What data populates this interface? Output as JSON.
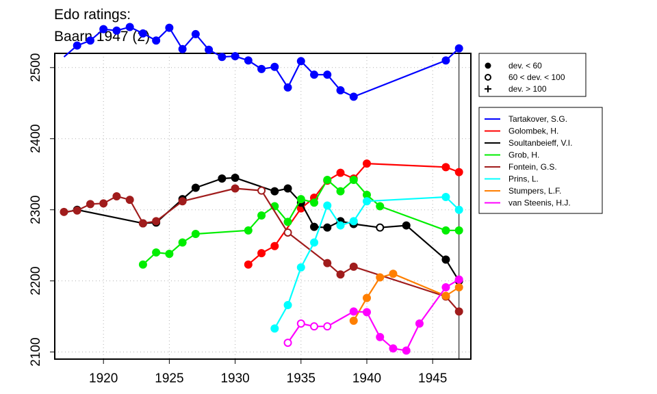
{
  "chart_data": {
    "type": "line",
    "title_lines": [
      "Edo ratings:",
      "Baarn 1947 (2)"
    ],
    "xlabel": "",
    "ylabel": "",
    "xlim": [
      1916.3,
      1947.9
    ],
    "ylim": [
      2090,
      2520
    ],
    "x_ticks": [
      1920,
      1925,
      1930,
      1935,
      1940,
      1945
    ],
    "y_ticks": [
      2100,
      2200,
      2300,
      2400,
      2500
    ],
    "grid": true,
    "reference_line_x": 1947,
    "legend_position": "right",
    "marker_legend": [
      {
        "symbol": "filled",
        "label": "dev. < 60"
      },
      {
        "symbol": "open",
        "label": "60 < dev. < 100"
      },
      {
        "symbol": "plus",
        "label": "dev. > 100"
      }
    ],
    "series": [
      {
        "name": "Tartakover, S.G.",
        "color": "#0000ff",
        "x": [
          1917,
          1918,
          1919,
          1920,
          1921,
          1922,
          1923,
          1924,
          1925,
          1926,
          1927,
          1928,
          1929,
          1930,
          1931,
          1932,
          1933,
          1934,
          1935,
          1936,
          1937,
          1938,
          1939,
          1946,
          1947
        ],
        "y": [
          2515,
          2531,
          2538,
          2554,
          2552,
          2557,
          2548,
          2538,
          2556,
          2526,
          2547,
          2525,
          2515,
          2516,
          2510,
          2498,
          2501,
          2472,
          2509,
          2490,
          2490,
          2468,
          2459,
          2510,
          2527
        ],
        "markers": [
          "none",
          "filled",
          "filled",
          "filled",
          "filled",
          "filled",
          "filled",
          "filled",
          "filled",
          "filled",
          "filled",
          "filled",
          "filled",
          "filled",
          "filled",
          "filled",
          "filled",
          "filled",
          "filled",
          "filled",
          "filled",
          "filled",
          "filled",
          "filled",
          "filled"
        ]
      },
      {
        "name": "Golombek, H.",
        "color": "#ff0000",
        "x": [
          1931,
          1932,
          1933,
          1935,
          1936,
          1937,
          1938,
          1939,
          1940,
          1946,
          1947
        ],
        "y": [
          2223,
          2239,
          2249,
          2302,
          2317,
          2341,
          2352,
          2344,
          2365,
          2360,
          2353
        ],
        "markers": [
          "filled",
          "filled",
          "filled",
          "filled",
          "filled",
          "filled",
          "filled",
          "filled",
          "filled",
          "filled",
          "filled"
        ]
      },
      {
        "name": "Soultanbeieff, V.I.",
        "color": "#000000",
        "x": [
          1917,
          1918,
          1923,
          1924,
          1926,
          1927,
          1929,
          1930,
          1933,
          1934,
          1935,
          1936,
          1937,
          1938,
          1939,
          1941,
          1943,
          1946,
          1947
        ],
        "y": [
          2296,
          2300,
          2281,
          2282,
          2315,
          2331,
          2344,
          2345,
          2326,
          2330,
          2310,
          2276,
          2275,
          2284,
          2280,
          2275,
          2278,
          2230,
          2200
        ],
        "markers": [
          "none",
          "filled",
          "filled",
          "filled",
          "filled",
          "filled",
          "filled",
          "filled",
          "filled",
          "filled",
          "filled",
          "filled",
          "filled",
          "filled",
          "filled",
          "open",
          "filled",
          "filled",
          "filled"
        ]
      },
      {
        "name": "Grob, H.",
        "color": "#00ee00",
        "x": [
          1923,
          1924,
          1925,
          1926,
          1927,
          1931,
          1932,
          1933,
          1934,
          1935,
          1936,
          1937,
          1938,
          1939,
          1940,
          1941,
          1946,
          1947
        ],
        "y": [
          2223,
          2240,
          2238,
          2254,
          2266,
          2271,
          2292,
          2305,
          2283,
          2315,
          2310,
          2342,
          2326,
          2342,
          2321,
          2305,
          2271,
          2271
        ],
        "markers": [
          "filled",
          "filled",
          "filled",
          "filled",
          "filled",
          "filled",
          "filled",
          "filled",
          "filled",
          "filled",
          "filled",
          "filled",
          "filled",
          "filled",
          "filled",
          "filled",
          "filled",
          "filled"
        ]
      },
      {
        "name": "Fontein, G.S.",
        "color": "#a01c1c",
        "x": [
          1917,
          1918,
          1919,
          1920,
          1921,
          1922,
          1923,
          1924,
          1926,
          1930,
          1932,
          1934,
          1937,
          1938,
          1939,
          1946,
          1947
        ],
        "y": [
          2297,
          2299,
          2308,
          2309,
          2319,
          2314,
          2281,
          2284,
          2312,
          2330,
          2327,
          2268,
          2225,
          2209,
          2220,
          2178,
          2157
        ],
        "markers": [
          "filled",
          "filled",
          "filled",
          "filled",
          "filled",
          "filled",
          "filled",
          "filled",
          "filled",
          "filled",
          "open",
          "open",
          "filled",
          "filled",
          "filled",
          "filled",
          "filled"
        ]
      },
      {
        "name": "Prins, L.",
        "color": "#00ffff",
        "x": [
          1933,
          1934,
          1935,
          1936,
          1937,
          1938,
          1939,
          1940,
          1946,
          1947
        ],
        "y": [
          2133,
          2166,
          2219,
          2254,
          2306,
          2278,
          2284,
          2312,
          2318,
          2300
        ],
        "markers": [
          "filled",
          "filled",
          "filled",
          "filled",
          "filled",
          "filled",
          "filled",
          "filled",
          "filled",
          "filled"
        ]
      },
      {
        "name": "Stumpers, L.F.",
        "color": "#ff7f00",
        "x": [
          1939,
          1940,
          1941,
          1942,
          1946,
          1947
        ],
        "y": [
          2144,
          2176,
          2205,
          2210,
          2179,
          2191
        ],
        "markers": [
          "filled",
          "filled",
          "filled",
          "filled",
          "filled",
          "filled"
        ]
      },
      {
        "name": "van Steenis, H.J.",
        "color": "#ff00ff",
        "x": [
          1934,
          1935,
          1936,
          1937,
          1939,
          1940,
          1941,
          1942,
          1943,
          1944,
          1946,
          1947
        ],
        "y": [
          2113,
          2140,
          2136,
          2136,
          2157,
          2156,
          2121,
          2105,
          2102,
          2140,
          2191,
          2202
        ],
        "markers": [
          "open",
          "open",
          "open",
          "open",
          "filled",
          "filled",
          "filled",
          "filled",
          "filled",
          "filled",
          "filled",
          "filled"
        ]
      }
    ]
  }
}
